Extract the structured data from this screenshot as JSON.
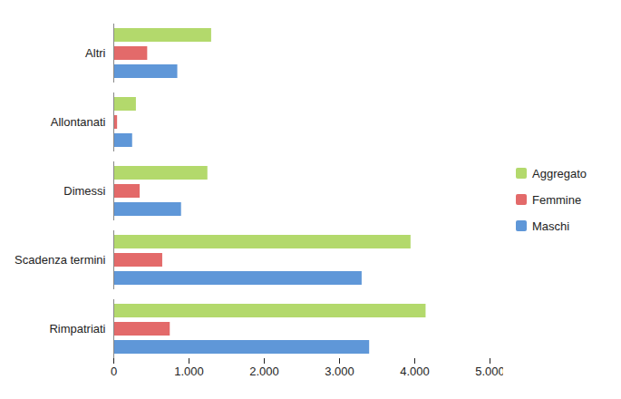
{
  "chart_data": {
    "type": "bar",
    "orientation": "horizontal",
    "categories": [
      "Altri",
      "Allontanati",
      "Dimessi",
      "Scadenza termini",
      "Rimpatriati"
    ],
    "series": [
      {
        "name": "Aggregato",
        "color": "#b3d96c",
        "values": [
          1300,
          300,
          1250,
          3950,
          4150
        ]
      },
      {
        "name": "Femmine",
        "color": "#e36a6a",
        "values": [
          450,
          50,
          350,
          650,
          750
        ]
      },
      {
        "name": "Maschi",
        "color": "#5f97d8",
        "values": [
          850,
          250,
          900,
          3300,
          3400
        ]
      }
    ],
    "xlim": [
      0,
      5000
    ],
    "xticks": [
      0,
      {
        "value": 1000,
        "label": "1.000"
      },
      {
        "value": 2000,
        "label": "2.000"
      },
      {
        "value": 3000,
        "label": "3.000"
      },
      {
        "value": 4000,
        "label": "4.000"
      },
      {
        "value": 5000,
        "label": "5.000"
      }
    ],
    "legend": "right"
  }
}
